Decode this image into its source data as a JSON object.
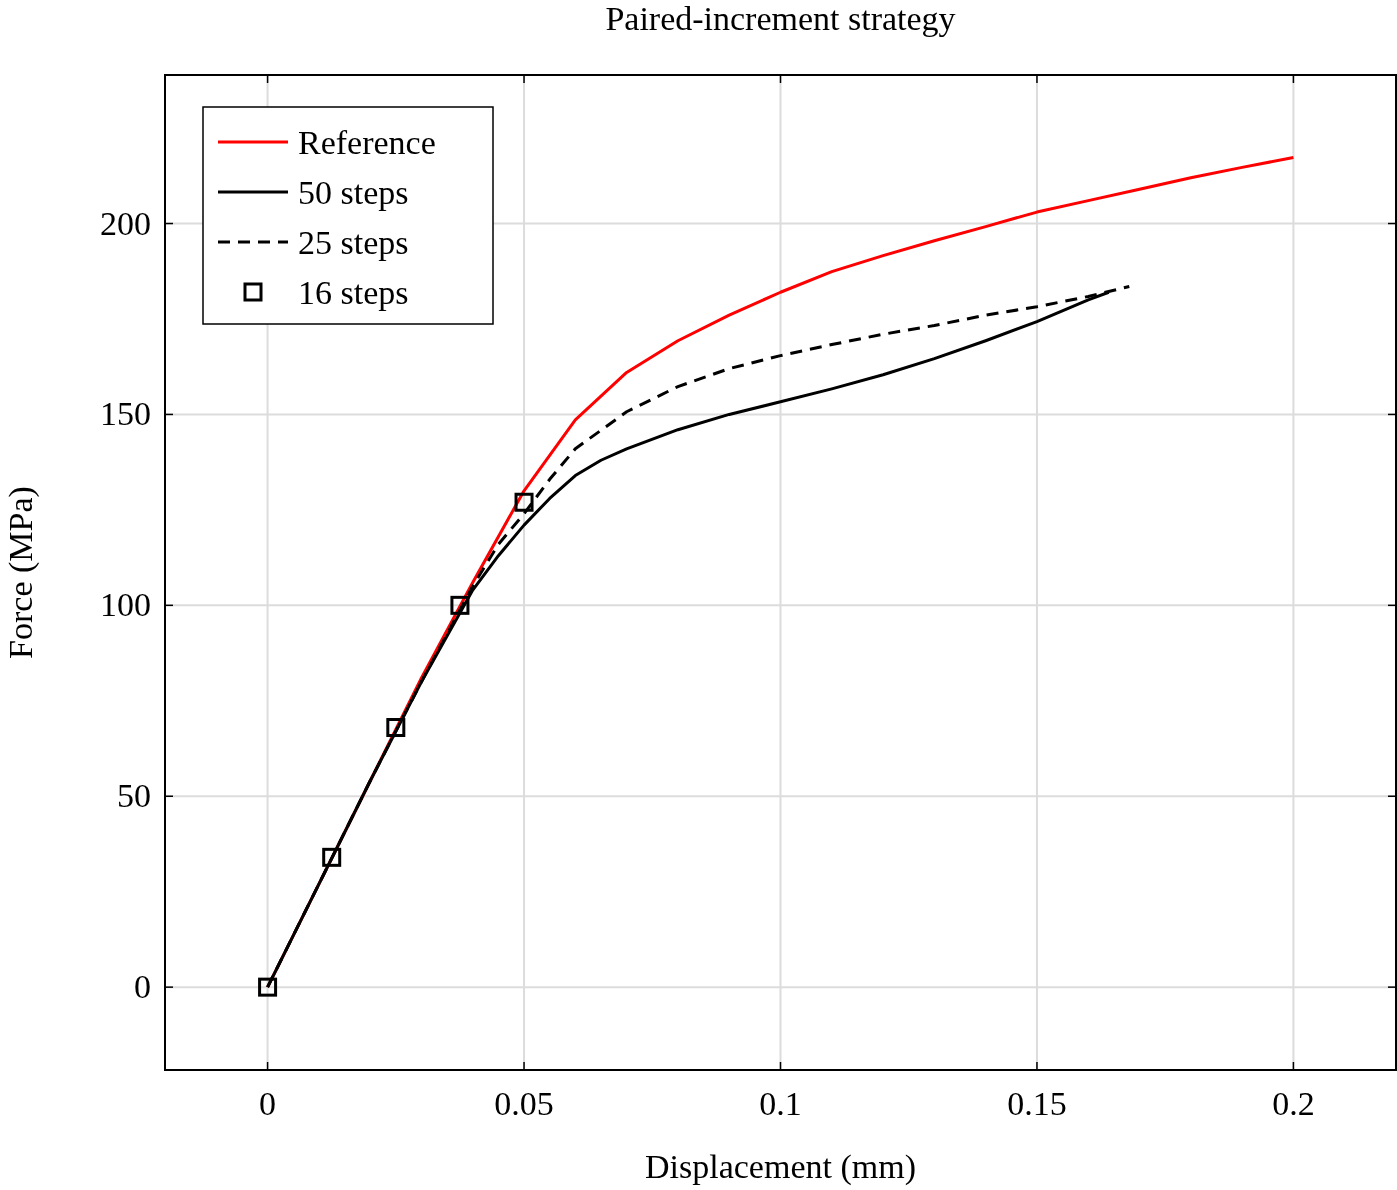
{
  "chart_data": {
    "type": "line",
    "title": "Paired-increment strategy",
    "xlabel": "Displacement (mm)",
    "ylabel": "Force (MPa)",
    "xlim": [
      -0.02,
      0.22
    ],
    "ylim": [
      -21.7,
      238.9
    ],
    "xticks": [
      0,
      0.05,
      0.1,
      0.15,
      0.2
    ],
    "yticks": [
      0,
      50,
      100,
      150,
      200
    ],
    "grid": true,
    "legend": "top left",
    "series": [
      {
        "name": "Reference",
        "color": "#ff0000",
        "line_style": "solid",
        "x": [
          0,
          0.01,
          0.02,
          0.03,
          0.04,
          0.05,
          0.06,
          0.07,
          0.08,
          0.09,
          0.1,
          0.11,
          0.12,
          0.13,
          0.14,
          0.15,
          0.16,
          0.17,
          0.18,
          0.19,
          0.2
        ],
        "values": [
          0,
          27,
          54,
          81,
          106,
          130,
          148.6,
          161,
          169.3,
          176,
          182,
          187.4,
          191.6,
          195.5,
          199.2,
          203,
          206,
          209,
          212,
          214.7,
          217.3
        ]
      },
      {
        "name": "50 steps",
        "color": "#000000",
        "line_style": "solid",
        "x": [
          0,
          0.01,
          0.02,
          0.03,
          0.04,
          0.045,
          0.05,
          0.055,
          0.06,
          0.065,
          0.07,
          0.08,
          0.09,
          0.1,
          0.11,
          0.12,
          0.13,
          0.14,
          0.15,
          0.16,
          0.164
        ],
        "values": [
          0,
          27,
          54,
          80,
          104,
          113,
          121,
          128,
          134,
          138,
          141,
          146,
          150,
          153.3,
          156.7,
          160.4,
          164.6,
          169.3,
          174.3,
          180,
          182
        ]
      },
      {
        "name": "25 steps",
        "color": "#000000",
        "line_style": "dashed",
        "x": [
          0,
          0.01,
          0.02,
          0.03,
          0.04,
          0.045,
          0.05,
          0.055,
          0.06,
          0.07,
          0.08,
          0.09,
          0.1,
          0.11,
          0.12,
          0.13,
          0.14,
          0.15,
          0.16,
          0.168
        ],
        "values": [
          0,
          27,
          54,
          80,
          105,
          116,
          124,
          133,
          141,
          150.7,
          157.3,
          162,
          165.4,
          168.3,
          171,
          173.3,
          176,
          178.2,
          180.9,
          183.5
        ]
      },
      {
        "name": "16 steps",
        "type": "scatter",
        "color": "#000000",
        "marker": "square",
        "x": [
          0,
          0.0125,
          0.025,
          0.0375,
          0.05
        ],
        "values": [
          0,
          34,
          68,
          100,
          127
        ]
      }
    ]
  }
}
